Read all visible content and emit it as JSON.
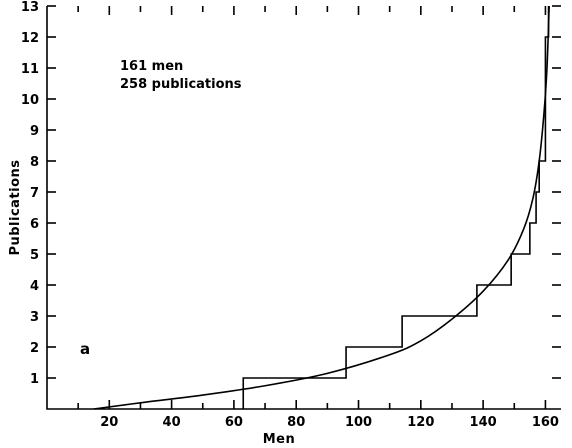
{
  "chart_data": {
    "type": "line",
    "title": "",
    "xlabel": "Men",
    "ylabel": "Publications",
    "xlim": [
      0,
      165
    ],
    "ylim": [
      0,
      13
    ],
    "x_ticks": [
      20,
      40,
      60,
      80,
      100,
      120,
      140,
      160
    ],
    "y_ticks": [
      1,
      2,
      3,
      4,
      5,
      6,
      7,
      8,
      9,
      10,
      11,
      12,
      13
    ],
    "grid": false,
    "annotations": [
      "161 men",
      "258 publications"
    ],
    "panel_label": "a",
    "series": [
      {
        "kind": "step",
        "points": [
          {
            "x": 63,
            "y": 1
          },
          {
            "x": 96,
            "y": 2
          },
          {
            "x": 114,
            "y": 3
          },
          {
            "x": 138,
            "y": 4
          },
          {
            "x": 149,
            "y": 5
          },
          {
            "x": 155,
            "y": 6
          },
          {
            "x": 157,
            "y": 7
          },
          {
            "x": 158,
            "y": 8
          },
          {
            "x": 160,
            "y": 12
          },
          {
            "x": 161,
            "y": 13
          }
        ]
      },
      {
        "kind": "curve",
        "points": [
          {
            "x": 15,
            "y": 0
          },
          {
            "x": 30,
            "y": 0.2
          },
          {
            "x": 50,
            "y": 0.45
          },
          {
            "x": 70,
            "y": 0.75
          },
          {
            "x": 90,
            "y": 1.15
          },
          {
            "x": 110,
            "y": 1.75
          },
          {
            "x": 120,
            "y": 2.2
          },
          {
            "x": 130,
            "y": 2.9
          },
          {
            "x": 140,
            "y": 3.8
          },
          {
            "x": 148,
            "y": 4.8
          },
          {
            "x": 153,
            "y": 5.8
          },
          {
            "x": 156,
            "y": 6.8
          },
          {
            "x": 158,
            "y": 8
          },
          {
            "x": 159.5,
            "y": 9.5
          },
          {
            "x": 160.5,
            "y": 11
          },
          {
            "x": 161.2,
            "y": 13
          }
        ]
      }
    ]
  }
}
